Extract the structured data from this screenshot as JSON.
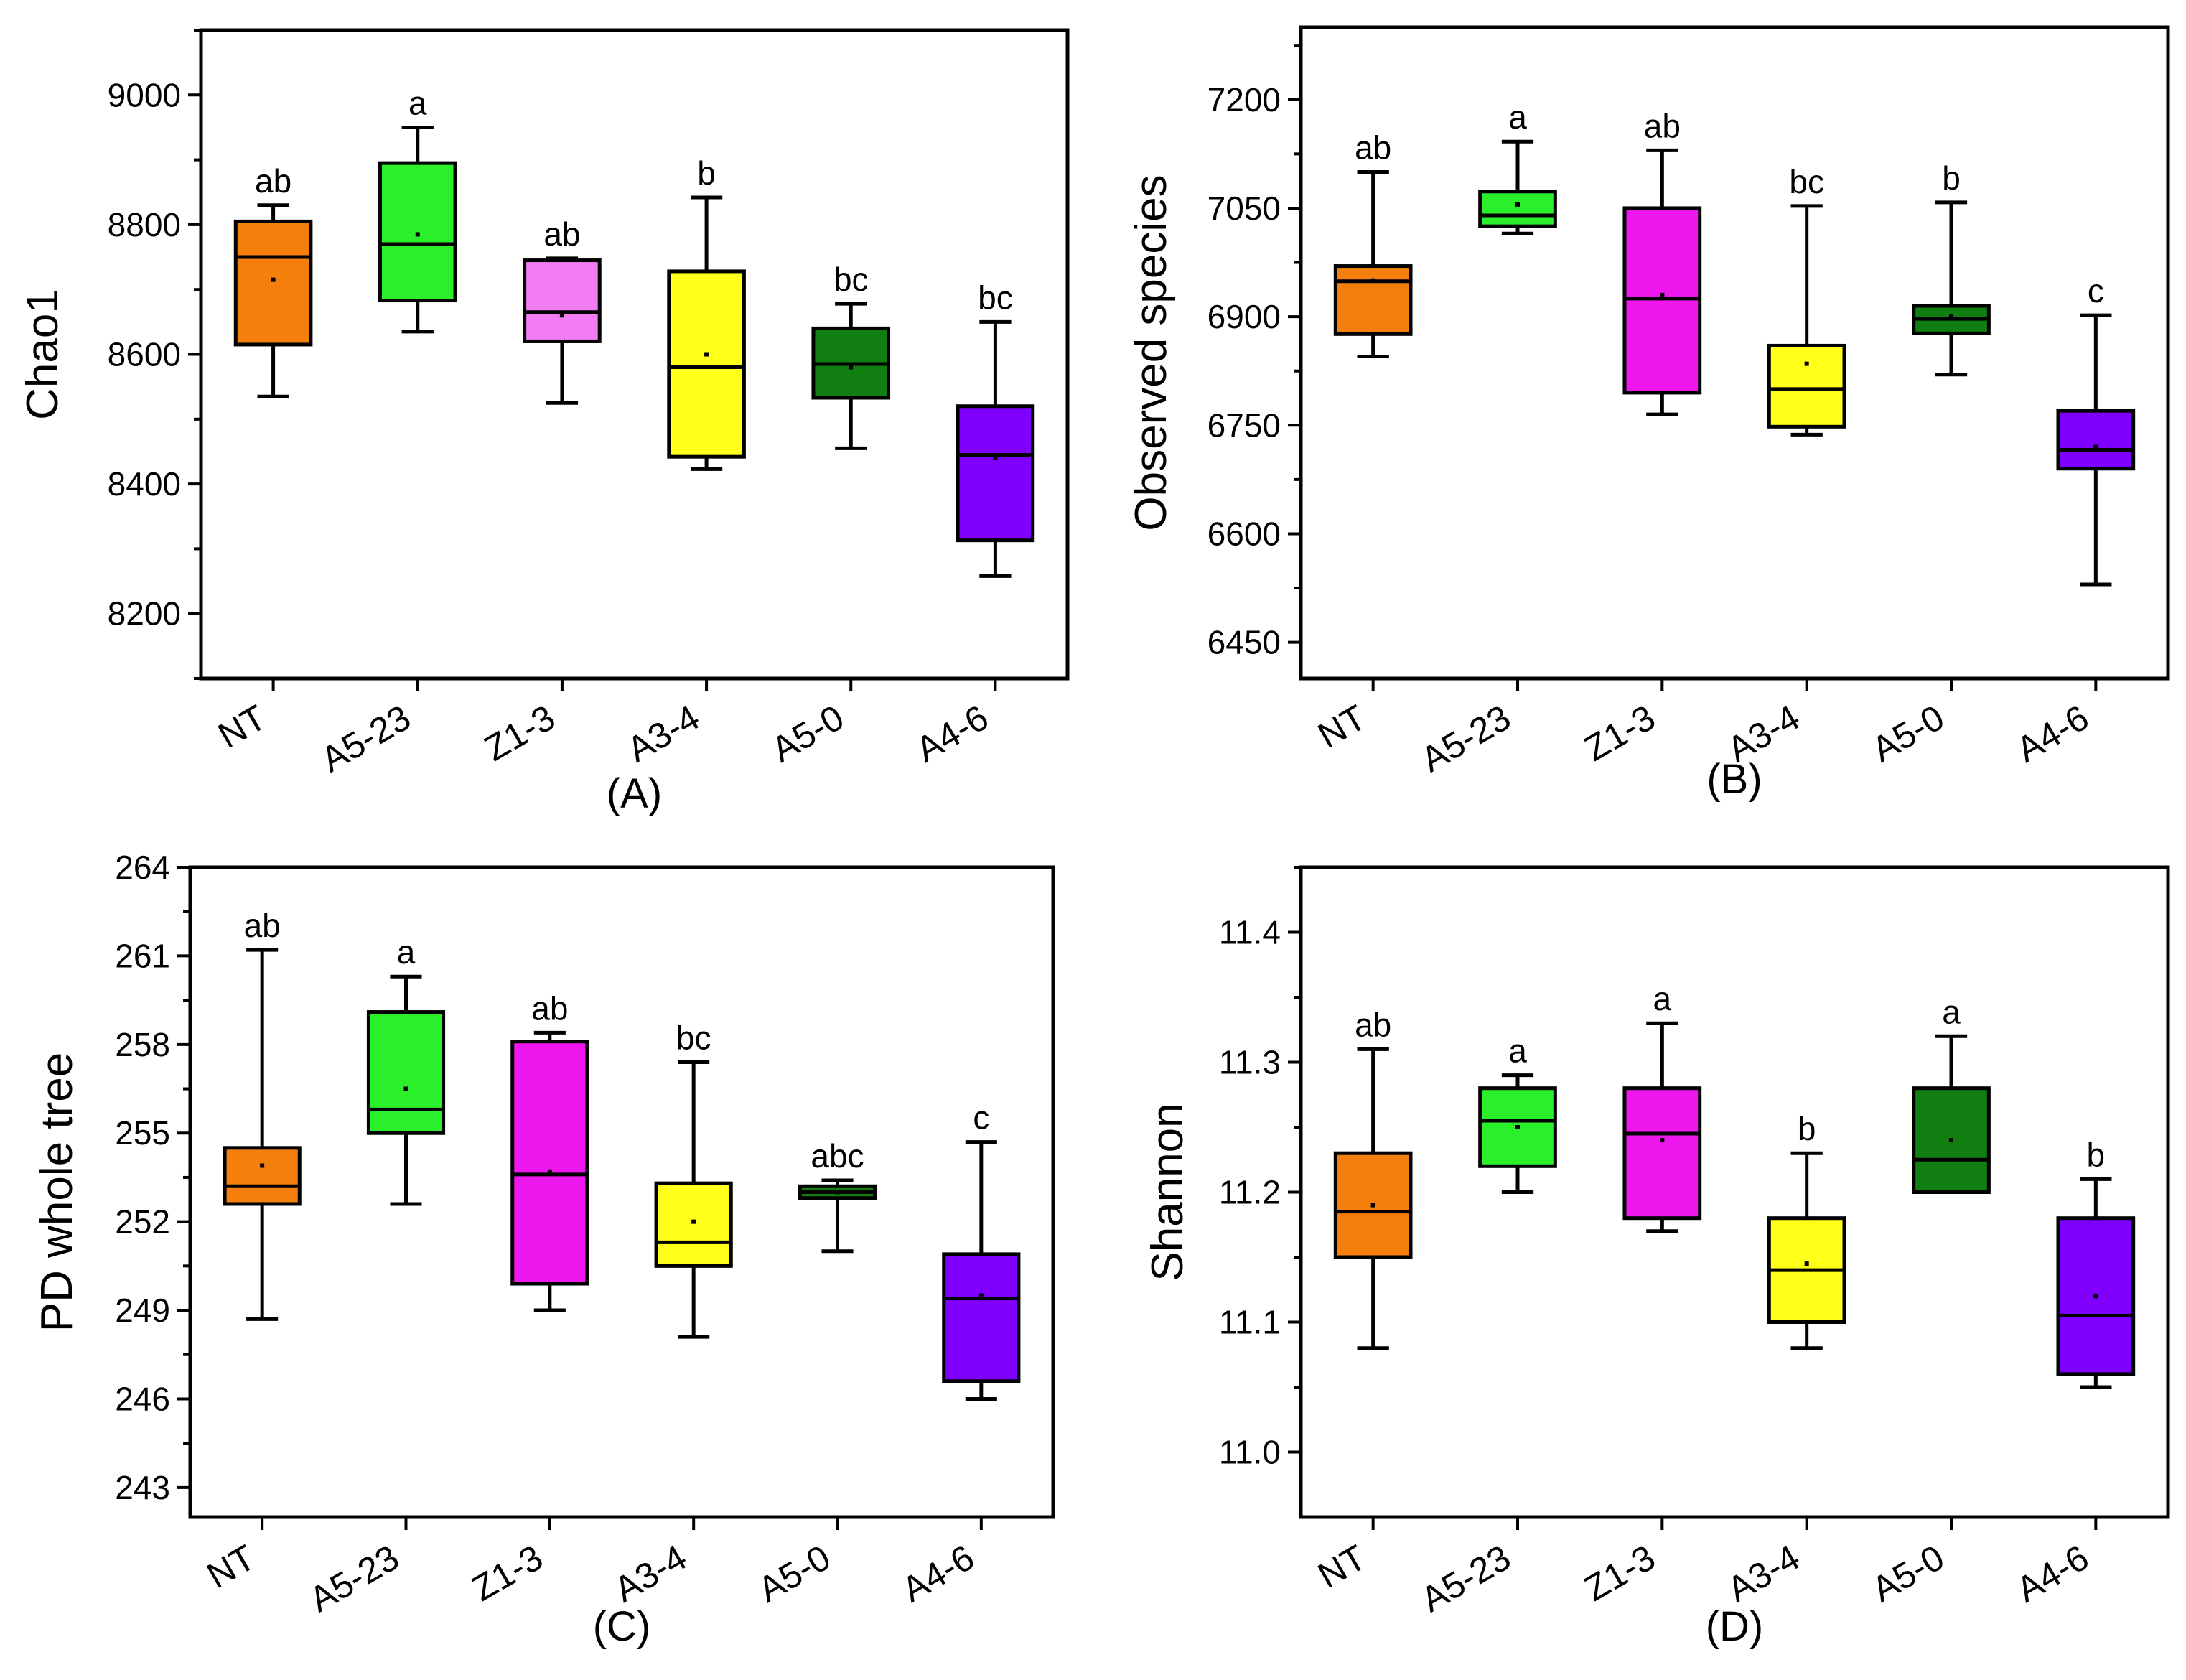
{
  "figure": {
    "colors": {
      "NT": "#f57f0c",
      "A5-23": "#2aef2a",
      "Z1-3": "#f27cf2",
      "Z1-3_alt": "#ee17ee",
      "A3-4": "#ffff19",
      "A5-0": "#107e10",
      "A4-6": "#8000ff",
      "axis": "#000000",
      "background": "#ffffff"
    }
  },
  "chart_data": [
    {
      "type": "box",
      "panel": "(A)",
      "title": "",
      "xlabel": "",
      "ylabel": "Chao1",
      "ylim": [
        8100,
        9100
      ],
      "yticks": [
        8200,
        8400,
        8600,
        8800,
        9000
      ],
      "ytick_labels": [
        "8200",
        "8400",
        "8600",
        "8800",
        "9000"
      ],
      "categories": [
        "NT",
        "A5-23",
        "Z1-3",
        "A3-4",
        "A5-0",
        "A4-6"
      ],
      "colors": [
        "#f57f0c",
        "#2aef2a",
        "#f27cf2",
        "#ffff19",
        "#107e10",
        "#8000ff"
      ],
      "boxes": [
        {
          "min": 8535,
          "q1": 8615,
          "median": 8750,
          "q3": 8805,
          "max": 8830,
          "mean": 8715,
          "letter": "ab"
        },
        {
          "min": 8635,
          "q1": 8683,
          "median": 8770,
          "q3": 8895,
          "max": 8950,
          "mean": 8785,
          "letter": "a"
        },
        {
          "min": 8525,
          "q1": 8620,
          "median": 8665,
          "q3": 8745,
          "max": 8748,
          "mean": 8660,
          "letter": "ab"
        },
        {
          "min": 8423,
          "q1": 8442,
          "median": 8580,
          "q3": 8728,
          "max": 8842,
          "mean": 8600,
          "letter": "b"
        },
        {
          "min": 8455,
          "q1": 8533,
          "median": 8585,
          "q3": 8640,
          "max": 8678,
          "mean": 8580,
          "letter": "bc"
        },
        {
          "min": 8258,
          "q1": 8313,
          "median": 8445,
          "q3": 8520,
          "max": 8650,
          "mean": 8440,
          "letter": "bc"
        }
      ]
    },
    {
      "type": "box",
      "panel": "(B)",
      "title": "",
      "xlabel": "",
      "ylabel": "Observed species",
      "ylim": [
        6400,
        7300
      ],
      "yticks": [
        6450,
        6600,
        6750,
        6900,
        7050,
        7200
      ],
      "ytick_labels": [
        "6450",
        "6600",
        "6750",
        "6900",
        "7050",
        "7200"
      ],
      "categories": [
        "NT",
        "A5-23",
        "Z1-3",
        "A3-4",
        "A5-0",
        "A4-6"
      ],
      "colors": [
        "#f57f0c",
        "#2aef2a",
        "#ee17ee",
        "#ffff19",
        "#107e10",
        "#8000ff"
      ],
      "boxes": [
        {
          "min": 6845,
          "q1": 6876,
          "median": 6949,
          "q3": 6970,
          "max": 7100,
          "mean": 6950,
          "letter": "ab"
        },
        {
          "min": 7015,
          "q1": 7025,
          "median": 7040,
          "q3": 7073,
          "max": 7142,
          "mean": 7055,
          "letter": "a"
        },
        {
          "min": 6765,
          "q1": 6795,
          "median": 6925,
          "q3": 7050,
          "max": 7130,
          "mean": 6930,
          "letter": "ab"
        },
        {
          "min": 6737,
          "q1": 6748,
          "median": 6800,
          "q3": 6860,
          "max": 7053,
          "mean": 6835,
          "letter": "bc"
        },
        {
          "min": 6820,
          "q1": 6877,
          "median": 6897,
          "q3": 6915,
          "max": 7058,
          "mean": 6900,
          "letter": "b"
        },
        {
          "min": 6530,
          "q1": 6690,
          "median": 6716,
          "q3": 6770,
          "max": 6902,
          "mean": 6720,
          "letter": "c"
        }
      ]
    },
    {
      "type": "box",
      "panel": "(C)",
      "title": "",
      "xlabel": "",
      "ylabel": "PD whole tree",
      "ylim": [
        242,
        264
      ],
      "yticks": [
        243,
        246,
        249,
        252,
        255,
        258,
        261,
        264
      ],
      "ytick_labels": [
        "243",
        "246",
        "249",
        "252",
        "255",
        "258",
        "261",
        "264"
      ],
      "categories": [
        "NT",
        "A5-23",
        "Z1-3",
        "A3-4",
        "A5-0",
        "A4-6"
      ],
      "colors": [
        "#f57f0c",
        "#2aef2a",
        "#ee17ee",
        "#ffff19",
        "#107e10",
        "#8000ff"
      ],
      "boxes": [
        {
          "min": 248.7,
          "q1": 252.6,
          "median": 253.2,
          "q3": 254.5,
          "max": 261.2,
          "mean": 253.9,
          "letter": "ab"
        },
        {
          "min": 252.6,
          "q1": 255.0,
          "median": 255.8,
          "q3": 259.1,
          "max": 260.3,
          "mean": 256.5,
          "letter": "a"
        },
        {
          "min": 249.0,
          "q1": 249.9,
          "median": 253.6,
          "q3": 258.1,
          "max": 258.4,
          "mean": 253.7,
          "letter": "ab"
        },
        {
          "min": 248.1,
          "q1": 250.5,
          "median": 251.3,
          "q3": 253.3,
          "max": 257.4,
          "mean": 252.0,
          "letter": "bc"
        },
        {
          "min": 251.0,
          "q1": 252.8,
          "median": 253.0,
          "q3": 253.2,
          "max": 253.4,
          "mean": 253.0,
          "letter": "abc"
        },
        {
          "min": 246.0,
          "q1": 246.6,
          "median": 249.4,
          "q3": 250.9,
          "max": 254.7,
          "mean": 249.5,
          "letter": "c"
        }
      ]
    },
    {
      "type": "box",
      "panel": "(D)",
      "title": "",
      "xlabel": "",
      "ylabel": "Shannon",
      "ylim": [
        10.95,
        11.45
      ],
      "yticks": [
        11.0,
        11.1,
        11.2,
        11.3,
        11.4
      ],
      "ytick_labels": [
        "11.0",
        "11.1",
        "11.2",
        "11.3",
        "11.4"
      ],
      "categories": [
        "NT",
        "A5-23",
        "Z1-3",
        "A3-4",
        "A5-0",
        "A4-6"
      ],
      "colors": [
        "#f57f0c",
        "#2aef2a",
        "#ee17ee",
        "#ffff19",
        "#107e10",
        "#8000ff"
      ],
      "boxes": [
        {
          "min": 11.08,
          "q1": 11.15,
          "median": 11.185,
          "q3": 11.23,
          "max": 11.31,
          "mean": 11.19,
          "letter": "ab"
        },
        {
          "min": 11.2,
          "q1": 11.22,
          "median": 11.255,
          "q3": 11.28,
          "max": 11.29,
          "mean": 11.25,
          "letter": "a"
        },
        {
          "min": 11.17,
          "q1": 11.18,
          "median": 11.245,
          "q3": 11.28,
          "max": 11.33,
          "mean": 11.24,
          "letter": "a"
        },
        {
          "min": 11.08,
          "q1": 11.1,
          "median": 11.14,
          "q3": 11.18,
          "max": 11.23,
          "mean": 11.145,
          "letter": "b"
        },
        {
          "min": 11.2,
          "q1": 11.2,
          "median": 11.225,
          "q3": 11.28,
          "max": 11.32,
          "mean": 11.24,
          "letter": "a"
        },
        {
          "min": 11.05,
          "q1": 11.06,
          "median": 11.105,
          "q3": 11.18,
          "max": 11.21,
          "mean": 11.12,
          "letter": "b"
        }
      ]
    }
  ]
}
